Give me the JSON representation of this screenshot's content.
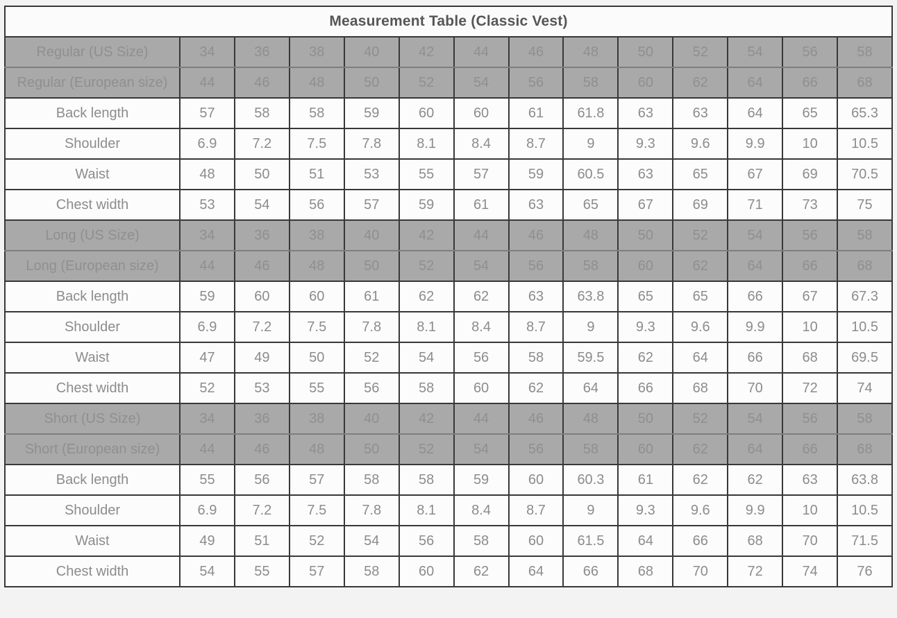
{
  "title": "Measurement Table (Classic Vest)",
  "colors": {
    "page_bg": "#f3f3f3",
    "border": "#383838",
    "title_row_bg": "#fbfbfb",
    "title_text": "#565656",
    "size_row_bg": "#a9a9a9",
    "size_row_text": "#8f8f8f",
    "data_row_bg": "#fcfcfc",
    "data_row_text": "#8c8c8c"
  },
  "chart_data": {
    "type": "table",
    "title": "Measurement Table (Classic Vest)",
    "num_value_columns": 13,
    "rows": [
      {
        "label": "Regular (US Size)",
        "style": "size-us",
        "values": [
          34,
          36,
          38,
          40,
          42,
          44,
          46,
          48,
          50,
          52,
          54,
          56,
          58
        ]
      },
      {
        "label": "Regular (European size)",
        "style": "size-eu",
        "values": [
          44,
          46,
          48,
          50,
          52,
          54,
          56,
          58,
          60,
          62,
          64,
          66,
          68
        ]
      },
      {
        "label": "Back length",
        "style": "measure",
        "values": [
          57,
          58,
          58,
          59,
          60,
          60,
          61,
          61.8,
          63,
          63,
          64,
          65,
          65.3
        ]
      },
      {
        "label": "Shoulder",
        "style": "measure",
        "values": [
          6.9,
          7.2,
          7.5,
          7.8,
          8.1,
          8.4,
          8.7,
          9,
          9.3,
          9.6,
          9.9,
          10,
          10.5
        ]
      },
      {
        "label": "Waist",
        "style": "measure",
        "values": [
          48,
          50,
          51,
          53,
          55,
          57,
          59,
          60.5,
          63,
          65,
          67,
          69,
          70.5
        ]
      },
      {
        "label": "Chest width",
        "style": "measure",
        "values": [
          53,
          54,
          56,
          57,
          59,
          61,
          63,
          65,
          67,
          69,
          71,
          73,
          75
        ]
      },
      {
        "label": "Long (US Size)",
        "style": "size-us",
        "values": [
          34,
          36,
          38,
          40,
          42,
          44,
          46,
          48,
          50,
          52,
          54,
          56,
          58
        ]
      },
      {
        "label": "Long (European size)",
        "style": "size-eu",
        "values": [
          44,
          46,
          48,
          50,
          52,
          54,
          56,
          58,
          60,
          62,
          64,
          66,
          68
        ]
      },
      {
        "label": "Back length",
        "style": "measure",
        "values": [
          59,
          60,
          60,
          61,
          62,
          62,
          63,
          63.8,
          65,
          65,
          66,
          67,
          67.3
        ]
      },
      {
        "label": "Shoulder",
        "style": "measure",
        "values": [
          6.9,
          7.2,
          7.5,
          7.8,
          8.1,
          8.4,
          8.7,
          9,
          9.3,
          9.6,
          9.9,
          10,
          10.5
        ]
      },
      {
        "label": "Waist",
        "style": "measure",
        "values": [
          47,
          49,
          50,
          52,
          54,
          56,
          58,
          59.5,
          62,
          64,
          66,
          68,
          69.5
        ]
      },
      {
        "label": "Chest width",
        "style": "measure",
        "values": [
          52,
          53,
          55,
          56,
          58,
          60,
          62,
          64,
          66,
          68,
          70,
          72,
          74
        ]
      },
      {
        "label": "Short (US Size)",
        "style": "size-us",
        "values": [
          34,
          36,
          38,
          40,
          42,
          44,
          46,
          48,
          50,
          52,
          54,
          56,
          58
        ]
      },
      {
        "label": "Short (European size)",
        "style": "size-eu",
        "values": [
          44,
          46,
          48,
          50,
          52,
          54,
          56,
          58,
          60,
          62,
          64,
          66,
          68
        ]
      },
      {
        "label": "Back length",
        "style": "measure",
        "values": [
          55,
          56,
          57,
          58,
          58,
          59,
          60,
          60.3,
          61,
          62,
          62,
          63,
          63.8
        ]
      },
      {
        "label": "Shoulder",
        "style": "measure",
        "values": [
          6.9,
          7.2,
          7.5,
          7.8,
          8.1,
          8.4,
          8.7,
          9,
          9.3,
          9.6,
          9.9,
          10,
          10.5
        ]
      },
      {
        "label": "Waist",
        "style": "measure",
        "values": [
          49,
          51,
          52,
          54,
          56,
          58,
          60,
          61.5,
          64,
          66,
          68,
          70,
          71.5
        ]
      },
      {
        "label": "Chest width",
        "style": "measure",
        "values": [
          54,
          55,
          57,
          58,
          60,
          62,
          64,
          66,
          68,
          70,
          72,
          74,
          76
        ]
      }
    ]
  }
}
